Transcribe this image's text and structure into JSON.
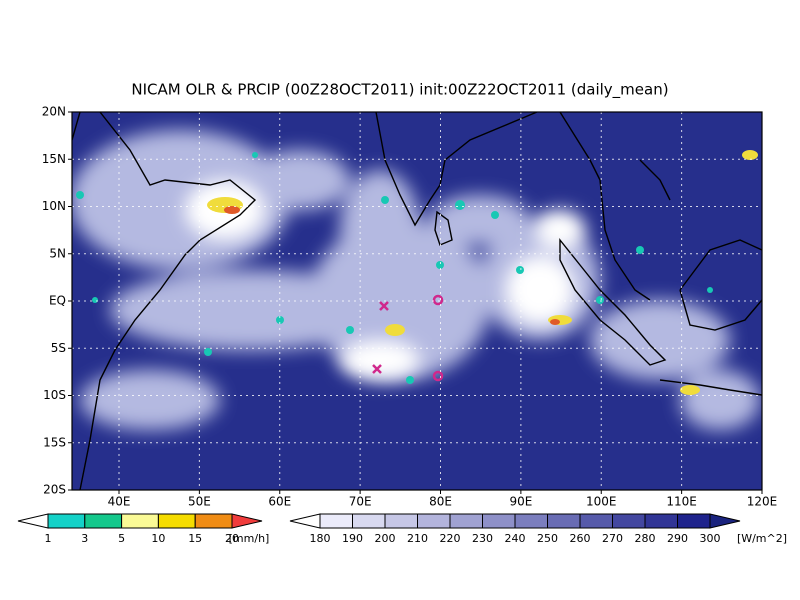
{
  "title": "NICAM OLR & PRCIP (00Z28OCT2011) init:00Z22OCT2011 (daily_mean)",
  "map": {
    "lat_labels": [
      "20N",
      "15N",
      "10N",
      "5N",
      "EQ",
      "5S",
      "10S",
      "15S",
      "20S"
    ],
    "lon_labels": [
      "40E",
      "50E",
      "60E",
      "70E",
      "80E",
      "90E",
      "100E",
      "110E",
      "120E"
    ]
  },
  "legends": {
    "precip": {
      "labels": [
        "1",
        "3",
        "5",
        "10",
        "15",
        "20"
      ],
      "unit": "[mm/h]"
    },
    "olr": {
      "labels": [
        "180",
        "190",
        "200",
        "210",
        "220",
        "230",
        "240",
        "250",
        "260",
        "270",
        "280",
        "290",
        "300"
      ],
      "unit": "[W/m^2]"
    }
  }
}
